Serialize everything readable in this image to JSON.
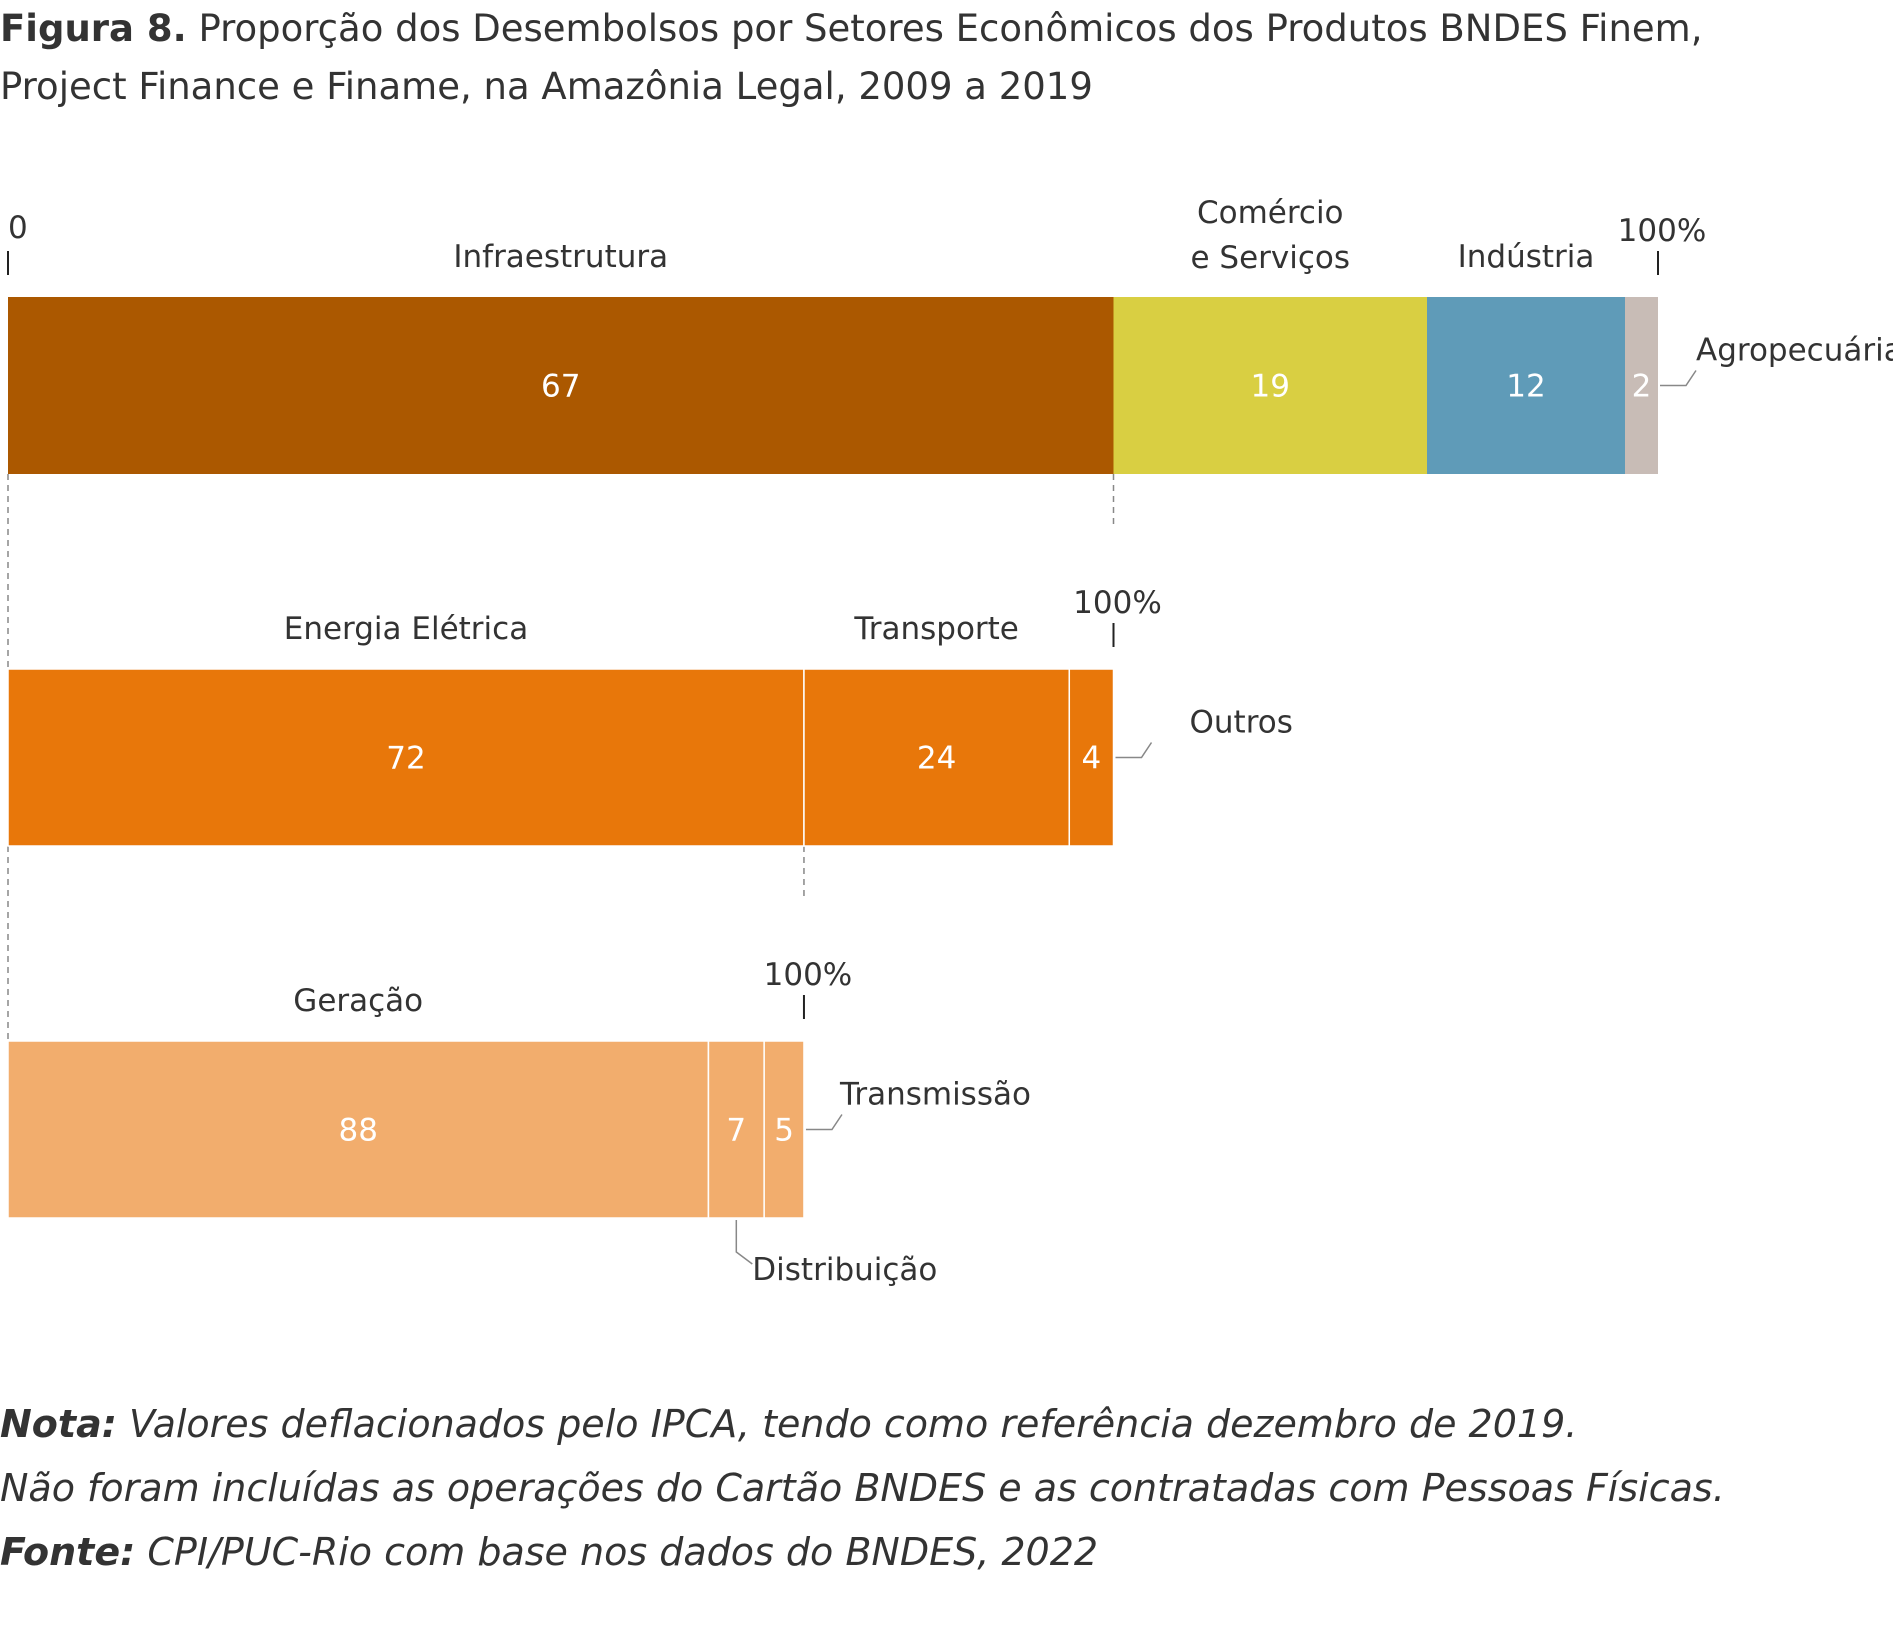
{
  "figure": {
    "label": "Figura 8.",
    "title_line1": "Proporção dos Desembolsos por Setores Econômicos dos Produtos BNDES Finem,",
    "title_line2": "Project Finance e Finame, na Amazônia Legal, 2009 a 2019"
  },
  "axis": {
    "zero_label": "0",
    "full_label": "100%"
  },
  "chart_data": [
    {
      "type": "bar",
      "orientation": "horizontal-stacked",
      "name": "Setores",
      "segments": [
        {
          "label": "Infraestrutura",
          "value": 67,
          "color": "#ab5800"
        },
        {
          "label": "Comércio e Serviços",
          "value": 19,
          "color": "#d9cf42"
        },
        {
          "label": "Indústria",
          "value": 12,
          "color": "#5f9bb8"
        },
        {
          "label": "Agropecuária",
          "value": 2,
          "color": "#c8bcb6"
        }
      ]
    },
    {
      "type": "bar",
      "orientation": "horizontal-stacked",
      "name": "Infraestrutura",
      "segments": [
        {
          "label": "Energia Elétrica",
          "value": 72,
          "color": "#e8770a"
        },
        {
          "label": "Transporte",
          "value": 24,
          "color": "#e8770a"
        },
        {
          "label": "Outros",
          "value": 4,
          "color": "#e8770a"
        }
      ]
    },
    {
      "type": "bar",
      "orientation": "horizontal-stacked",
      "name": "Energia Elétrica",
      "segments": [
        {
          "label": "Geração",
          "value": 88,
          "color": "#f2ad6d"
        },
        {
          "label": "Distribuição",
          "value": 7,
          "color": "#f2ad6d"
        },
        {
          "label": "Transmissão",
          "value": 5,
          "color": "#f2ad6d"
        }
      ]
    }
  ],
  "notes": {
    "nota_label": "Nota:",
    "nota_text": " Valores deflacionados pelo IPCA, tendo como referência dezembro de 2019.",
    "nota_line2": "Não foram incluídas as operações do Cartão BNDES e as contratadas com Pessoas Físicas.",
    "fonte_label": "Fonte:",
    "fonte_text": " CPI/PUC-Rio com base nos dados do BNDES, 2022"
  },
  "colors": {
    "text": "#333333",
    "value_text": "#ffffff",
    "guide": "#888888"
  }
}
